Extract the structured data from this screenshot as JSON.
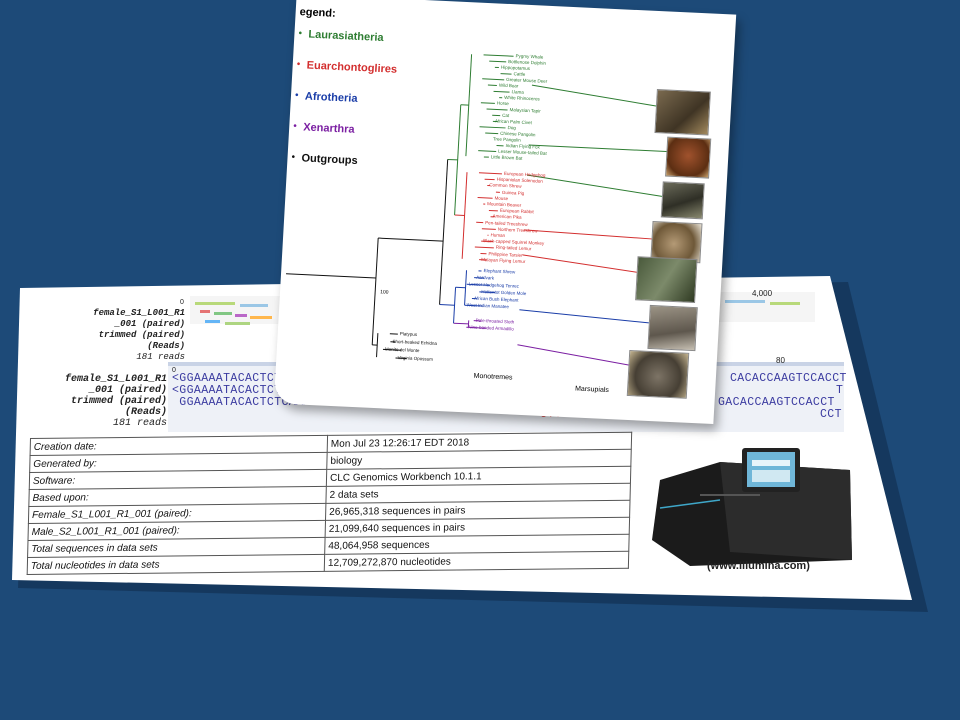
{
  "document": {
    "top_track_label": [
      "female_S1_L001_R1",
      "_001 (paired)",
      "trimmed (paired)",
      "(Reads)",
      "181 reads"
    ],
    "top_track_pos": "0",
    "top_track_right": "4,000",
    "seq_track_label": [
      "female_S1_L001_R1",
      "_001 (paired)",
      "trimmed (paired)",
      "(Reads)",
      "181 reads"
    ],
    "seq_pos_left": "0",
    "seq_pos_right": "80",
    "seq_lines": [
      "<GGAAAATACACTCTCAAATTAGAAAACAGCAG",
      "<GGAAAATACACTCTCAAATTAGAAAACAGCAGTGGAAC",
      " GGAAAATACACTCTCAAATTAGAAAACAGCAGTGGAACAAAGTCTGCC"
    ],
    "seq_right_lines": [
      "CACACCAAGTCCACCT",
      "T",
      "GACACCAAGTCCACCT",
      "CCT"
    ],
    "seq_red": "CTTTGTTAC",
    "table": [
      [
        "Creation date:",
        "Mon Jul 23 12:26:17 EDT 2018"
      ],
      [
        "Generated by:",
        "biology"
      ],
      [
        "Software:",
        "CLC Genomics Workbench 10.1.1"
      ],
      [
        "Based upon:",
        "2 data sets"
      ],
      [
        "Female_S1_L001_R1_001 (paired):",
        "26,965,318 sequences in pairs"
      ],
      [
        "Male_S2_L001_R1_001 (paired):",
        "21,099,640 sequences in pairs"
      ],
      [
        "Total sequences in data sets",
        "48,064,958 sequences"
      ],
      [
        "Total nucleotides in data sets",
        "12,709,272,870 nucleotides"
      ]
    ],
    "illumina_caption": "(www.Illumina.com)"
  },
  "tree": {
    "legend_title": "egend:",
    "legend": [
      {
        "label": "Laurasiatheria",
        "color": "#2e7d32"
      },
      {
        "label": "Euarchontoglires",
        "color": "#d32f2f"
      },
      {
        "label": "Afrotheria",
        "color": "#1a3da8"
      },
      {
        "label": "Xenarthra",
        "color": "#7b1fa2"
      },
      {
        "label": "Outgroups",
        "color": "#111111"
      }
    ],
    "bootstrap_root": "100",
    "leaves_green": [
      "Pygmy Whale",
      "Bottlenose Dolphin",
      "Hippopotamus",
      "Cattle",
      "Greater Mouse Deer",
      "Wild Boar",
      "Llama",
      "White Rhinoceros",
      "Horse",
      "Malaysian Tapir",
      "Cat",
      "African Palm Civet",
      "Dog",
      "Chinese Pangolin",
      "Tree Pangolin",
      "Indian Flying Fox",
      "Lesser Mouse-tailed Bat",
      "Little Brown Bat"
    ],
    "leaves_red": [
      "European Hedgehog",
      "Hispaniolan Solenodon",
      "Common Shrew",
      "Guinea Pig",
      "Mouse",
      "Mountain Beaver",
      "European Rabbit",
      "American Pika",
      "Pen-tailed Treeshrew",
      "Northern Treeshrew",
      "Human",
      "Black-capped Squirrel Monkey",
      "Ring-tailed Lemur",
      "Philippine Tarsier",
      "Malayan Flying Lemur"
    ],
    "leaves_blue": [
      "Elephant Shrew",
      "Aardvark",
      "Lesser Hedgehog Tenrec",
      "Hottentot Golden Mole",
      "African Bush Elephant",
      "West Indian Manatee"
    ],
    "leaves_purple": [
      "Pale-throated Sloth",
      "Nine-banded Armadillo"
    ],
    "leaves_black": [
      "Platypus",
      "Short-beaked Echidna",
      "Monito del Monte",
      "Virginia Opossum"
    ],
    "annotations": [
      "Monotremes",
      "Marsupials"
    ]
  }
}
